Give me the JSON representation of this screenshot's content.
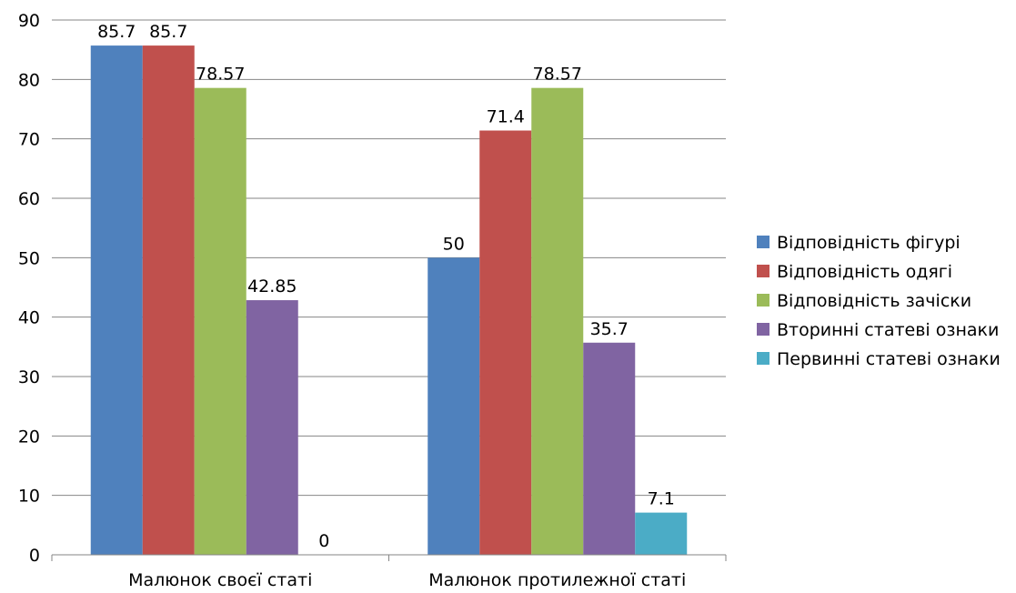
{
  "chart_data": {
    "type": "bar",
    "title": "",
    "xlabel": "",
    "ylabel": "",
    "ylim": [
      0,
      90
    ],
    "yticks": [
      0,
      10,
      20,
      30,
      40,
      50,
      60,
      70,
      80,
      90
    ],
    "grid": true,
    "legend_position": "right",
    "categories": [
      "Малюнок своєї статі",
      "Малюнок протилежної статі"
    ],
    "series": [
      {
        "name": "Відповідність фігурі",
        "color": "#4F81BD",
        "values": [
          85.7,
          50
        ],
        "labels": [
          "85.7",
          "50"
        ]
      },
      {
        "name": "Відповідність одягі",
        "color": "#C0504D",
        "values": [
          85.7,
          71.4
        ],
        "labels": [
          "85.7",
          "71.4"
        ]
      },
      {
        "name": "Відповідність зачіски",
        "color": "#9BBB59",
        "values": [
          78.57,
          78.57
        ],
        "labels": [
          "78.57",
          "78.57"
        ]
      },
      {
        "name": "Вторинні статеві ознаки",
        "color": "#8064A2",
        "values": [
          42.85,
          35.7
        ],
        "labels": [
          "42.85",
          "35.7"
        ]
      },
      {
        "name": "Первинні статеві ознаки",
        "color": "#4BACC6",
        "values": [
          0,
          7.1
        ],
        "labels": [
          "0",
          "7.1"
        ]
      }
    ]
  }
}
